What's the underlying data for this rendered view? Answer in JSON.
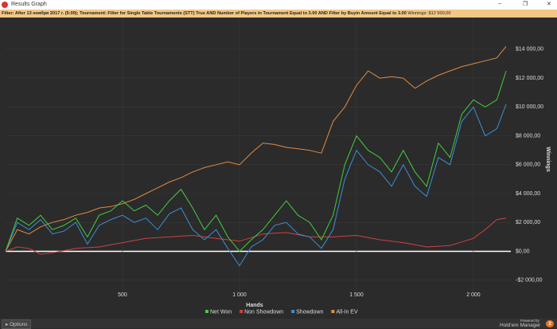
{
  "window": {
    "title": "Results Graph"
  },
  "filter": {
    "text": "Filter: After 13 ноября 2017 г. (5:00); Tournament: Filter for Single Table Tournaments (STT) True AND Number of Players in Tournament Equal to 3.00 AND Filter by Buyin Amount Equal to 3.00",
    "winnings": "Winnings: $12 500,00"
  },
  "chart_data": {
    "type": "line",
    "x_label": "Hands",
    "y_label": "Winnings",
    "x": [
      0,
      50,
      100,
      150,
      200,
      250,
      300,
      350,
      400,
      450,
      500,
      550,
      600,
      650,
      700,
      750,
      800,
      850,
      900,
      950,
      1000,
      1050,
      1100,
      1150,
      1200,
      1250,
      1300,
      1350,
      1400,
      1450,
      1500,
      1550,
      1600,
      1650,
      1700,
      1750,
      1800,
      1850,
      1900,
      1950,
      2000,
      2050,
      2100,
      2140
    ],
    "series": [
      {
        "name": "Net Won",
        "color": "#3fcf3f",
        "values": [
          0,
          2300,
          1800,
          2500,
          1500,
          1800,
          2300,
          1000,
          2500,
          2800,
          3500,
          2800,
          3200,
          2500,
          3500,
          4300,
          3000,
          1500,
          2500,
          1000,
          0,
          800,
          1500,
          2500,
          3500,
          2500,
          2000,
          800,
          2500,
          6000,
          8000,
          7000,
          6500,
          5500,
          7000,
          5500,
          4500,
          7500,
          6500,
          9500,
          10500,
          10000,
          10500,
          12500
        ]
      },
      {
        "name": "Non Showdown",
        "color": "#d04040",
        "values": [
          0,
          300,
          200,
          -200,
          -100,
          50,
          200,
          250,
          300,
          450,
          600,
          750,
          900,
          950,
          1000,
          1050,
          1100,
          1000,
          900,
          800,
          700,
          950,
          1200,
          1250,
          1300,
          1150,
          1000,
          1000,
          1000,
          1050,
          1100,
          950,
          800,
          700,
          600,
          450,
          300,
          350,
          400,
          650,
          900,
          1500,
          2200,
          2300
        ]
      },
      {
        "name": "Showdown",
        "color": "#3b8fd4",
        "values": [
          0,
          2000,
          1500,
          2200,
          1200,
          1400,
          2000,
          500,
          1800,
          2200,
          2500,
          2000,
          2300,
          1500,
          2600,
          3000,
          1500,
          800,
          1500,
          200,
          -1000,
          300,
          800,
          1800,
          2000,
          1200,
          1000,
          200,
          1500,
          5000,
          7000,
          6000,
          5500,
          4500,
          6000,
          4500,
          3800,
          6500,
          6000,
          9000,
          10000,
          8000,
          8500,
          10200
        ]
      },
      {
        "name": "All-In EV",
        "color": "#e38b3e",
        "values": [
          0,
          1500,
          1200,
          1700,
          2000,
          2200,
          2500,
          2700,
          3000,
          3100,
          3300,
          3600,
          4000,
          4400,
          4800,
          5100,
          5500,
          5800,
          6000,
          6200,
          6000,
          6800,
          7500,
          7400,
          7200,
          7100,
          7000,
          6800,
          9000,
          10000,
          11500,
          12500,
          12000,
          12100,
          12000,
          11300,
          11800,
          12200,
          12500,
          12800,
          13000,
          13200,
          13400,
          14200
        ]
      }
    ],
    "xlim": [
      0,
      2160
    ],
    "xticks": [
      500,
      {
        "value": 1000,
        "label": "1 000"
      },
      {
        "value": 1500,
        "label": "1 500"
      },
      {
        "value": 2000,
        "label": "2 000"
      }
    ],
    "ylim": [
      -2900,
      16200
    ],
    "yticks": [
      {
        "value": -2000,
        "label": "-$2 000,00"
      },
      {
        "value": 0,
        "label": "$0,00"
      },
      {
        "value": 2000,
        "label": "$2 000,00"
      },
      {
        "value": 4000,
        "label": "$4 000,00"
      },
      {
        "value": 6000,
        "label": "$6 000,00"
      },
      {
        "value": 8000,
        "label": "$8 000,00"
      },
      {
        "value": 10000,
        "label": "$10 000,00"
      },
      {
        "value": 12000,
        "label": "$12 000,00"
      },
      {
        "value": 14000,
        "label": "$14 000,00"
      }
    ],
    "grid": true
  },
  "footer": {
    "options": "Options",
    "powered": "Powered by",
    "brand": "Hold'em Manager",
    "version": "2"
  }
}
